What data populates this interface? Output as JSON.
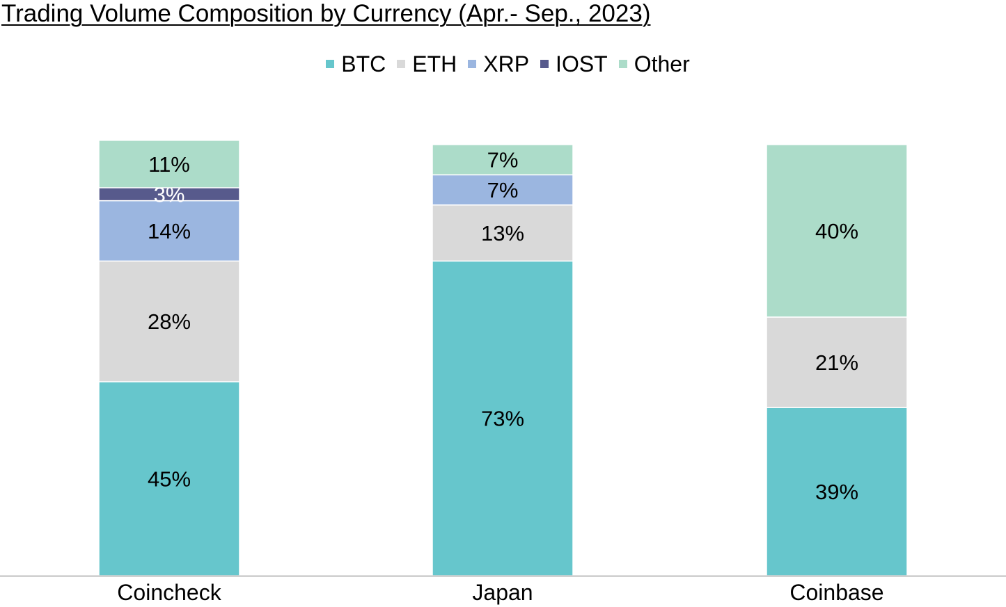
{
  "chart_data": {
    "type": "bar",
    "stacked": true,
    "title": "Trading Volume Composition by Currency (Apr.- Sep., 2023)",
    "categories": [
      "Coincheck",
      "Japan",
      "Coinbase"
    ],
    "series": [
      {
        "name": "BTC",
        "color": "#66c6cc",
        "values": [
          45,
          73,
          39
        ],
        "labels": [
          "45%",
          "73%",
          "39%"
        ]
      },
      {
        "name": "ETH",
        "color": "#d9d9d9",
        "values": [
          28,
          13,
          21
        ],
        "labels": [
          "28%",
          "13%",
          "21%"
        ]
      },
      {
        "name": "XRP",
        "color": "#9bb6e0",
        "values": [
          14,
          7,
          0
        ],
        "labels": [
          "14%",
          "7%",
          ""
        ]
      },
      {
        "name": "IOST",
        "color": "#575a8c",
        "values": [
          3,
          0,
          0
        ],
        "labels": [
          "3%",
          "",
          ""
        ]
      },
      {
        "name": "Other",
        "color": "#acdcc9",
        "values": [
          11,
          7,
          40
        ],
        "labels": [
          "11%",
          "7%",
          "40%"
        ]
      }
    ],
    "legend_position": "top",
    "grid": false
  }
}
